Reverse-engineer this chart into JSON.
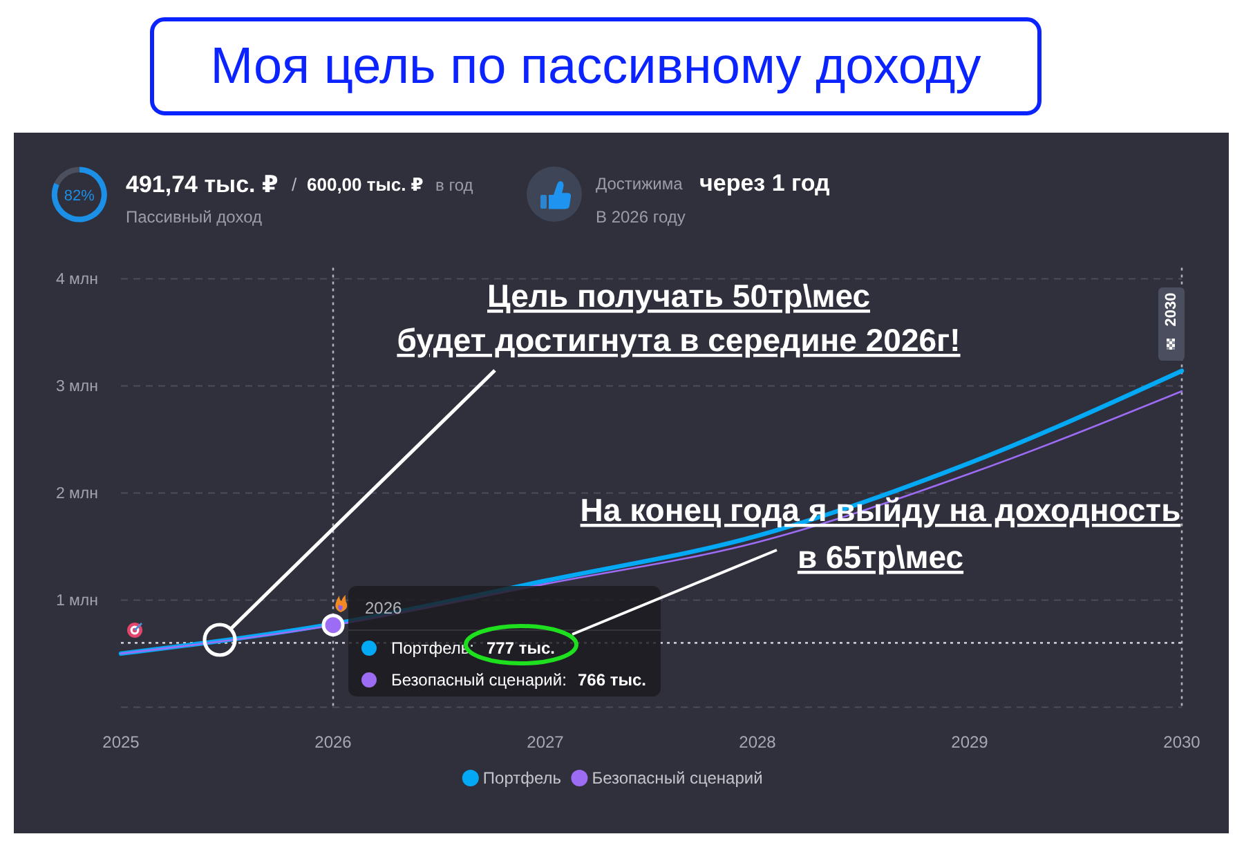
{
  "chart_data": [
    {
      "type": "other",
      "title": "Моя цель по пассивному доходу",
      "annotations": [
        "491,74 тыс. ₽",
        "/",
        "600,00 тыс. ₽",
        "в год",
        "Пассивный доход",
        "Достижима",
        "через 1 год",
        "В 2026 году"
      ]
    },
    {
      "type": "donut",
      "categories": [
        null,
        null
      ],
      "values": [
        82,
        18
      ],
      "colors": [
        "#1c8fe6",
        "#4b4f5e"
      ],
      "value_labels": [
        "82%",
        null
      ]
    },
    {
      "type": "line",
      "x": [
        2025,
        2026,
        2027,
        2028,
        2029,
        2030
      ],
      "series": [
        {
          "name": "Портфель",
          "color": "#03a9f4",
          "values": [
            0.5,
            0.777,
            1.18,
            1.6,
            2.28,
            3.14
          ]
        },
        {
          "name": "Безопасный сценарий",
          "color": "#9d6cf4",
          "values": [
            0.5,
            0.766,
            1.15,
            1.54,
            2.18,
            2.95
          ]
        }
      ],
      "xlim": [
        2025,
        2030
      ],
      "xticks": [
        2025,
        2026,
        2027,
        2028,
        2029,
        2030
      ],
      "ylim": [
        0,
        4
      ],
      "yticks": [
        {
          "value": 0,
          "label": null
        },
        {
          "value": 1,
          "label": "1 млн"
        },
        {
          "value": 2,
          "label": "2 млн"
        },
        {
          "value": 3,
          "label": "3 млн"
        },
        {
          "value": 4,
          "label": "4 млн"
        }
      ],
      "grid": "y",
      "legend": "bottom",
      "ref_lines": [
        {
          "axis": "y",
          "value": 0.6,
          "color": "#c8c8d0",
          "line_style": "dotted"
        },
        {
          "axis": "x",
          "value": 2026,
          "color": "#b0b0ba",
          "line_style": "dotted"
        },
        {
          "axis": "x",
          "value": 2030,
          "label": "2030",
          "color": "#b0b0ba",
          "line_style": "dotted"
        }
      ],
      "annotations": [
        "Цель получать 50тр\\мес",
        "будет достигнута в середине 2026г!",
        "На конец года я выйду на доходность",
        "в 65тр\\мес",
        "2026",
        "Портфель:",
        "777 тыс.",
        "Безопасный сценарий:",
        "766 тыс."
      ]
    }
  ]
}
